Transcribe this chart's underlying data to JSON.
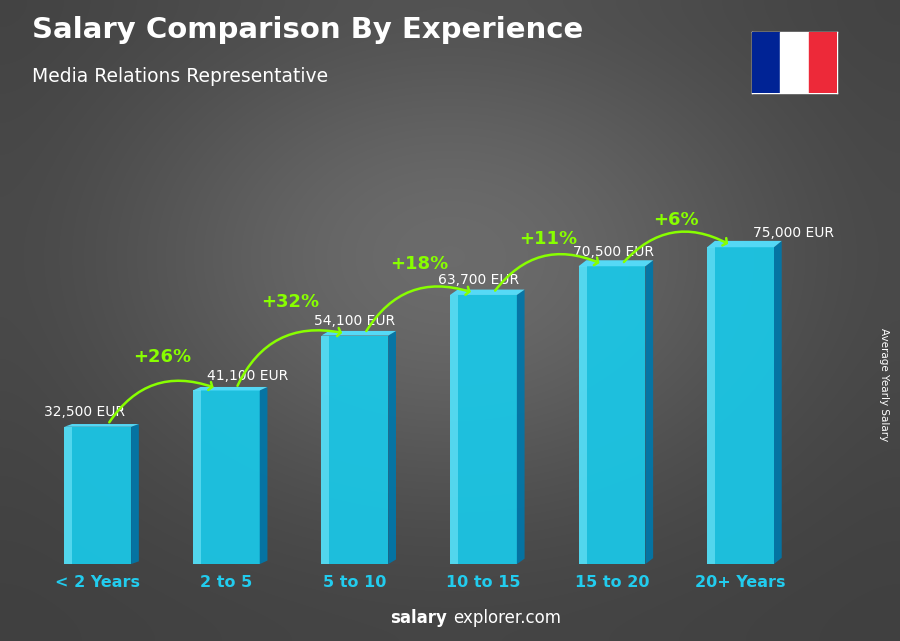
{
  "title": "Salary Comparison By Experience",
  "subtitle": "Media Relations Representative",
  "categories": [
    "< 2 Years",
    "2 to 5",
    "5 to 10",
    "10 to 15",
    "15 to 20",
    "20+ Years"
  ],
  "values": [
    32500,
    41100,
    54100,
    63700,
    70500,
    75000
  ],
  "value_labels": [
    "32,500 EUR",
    "41,100 EUR",
    "54,100 EUR",
    "63,700 EUR",
    "70,500 EUR",
    "75,000 EUR"
  ],
  "pct_labels": [
    "+26%",
    "+32%",
    "+18%",
    "+11%",
    "+6%"
  ],
  "bar_face_color": "#1ac8e8",
  "bar_right_color": "#0077aa",
  "bar_top_color": "#55e0ff",
  "bar_highlight_color": "#88eeff",
  "bg_color": "#3a3a4a",
  "title_color": "#ffffff",
  "subtitle_color": "#ffffff",
  "value_label_color": "#ffffff",
  "pct_color": "#88ff00",
  "arrow_color": "#88ff00",
  "xlabel_color": "#22ccee",
  "footer_bold": "salary",
  "footer_normal": "explorer.com",
  "side_label": "Average Yearly Salary",
  "ylim_max": 88000,
  "bar_width": 0.52,
  "flag_colors": [
    "#002395",
    "#ffffff",
    "#ED2939"
  ]
}
